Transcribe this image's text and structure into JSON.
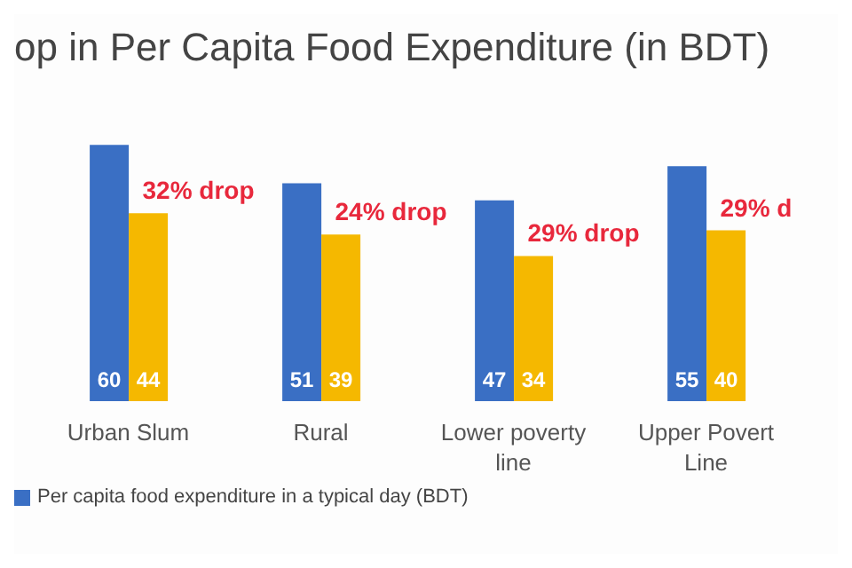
{
  "chart_data": {
    "type": "bar",
    "title": "op in Per Capita Food Expenditure (in BDT)",
    "categories": [
      "Urban Slum",
      "Rural",
      "Lower poverty line",
      "Upper Povert Line"
    ],
    "series": [
      {
        "name": "Per capita food expenditure in a typical day (BDT)",
        "color": "#3a6fc4",
        "values": [
          60,
          51,
          47,
          55
        ]
      },
      {
        "color": "#f5b800",
        "values": [
          44,
          39,
          34,
          40
        ]
      }
    ],
    "data_labels": true,
    "legend": "bottom",
    "grid": false,
    "annotations": [
      {
        "text": "32% drop",
        "x": "Urban Slum",
        "y": 44
      },
      {
        "text": "24% drop",
        "x": "Rural",
        "y": 39
      },
      {
        "text": "29% drop",
        "x": "Lower poverty line",
        "y": 34
      },
      {
        "text": "29% d",
        "x": "Upper Povert Line",
        "y": 40
      }
    ]
  }
}
